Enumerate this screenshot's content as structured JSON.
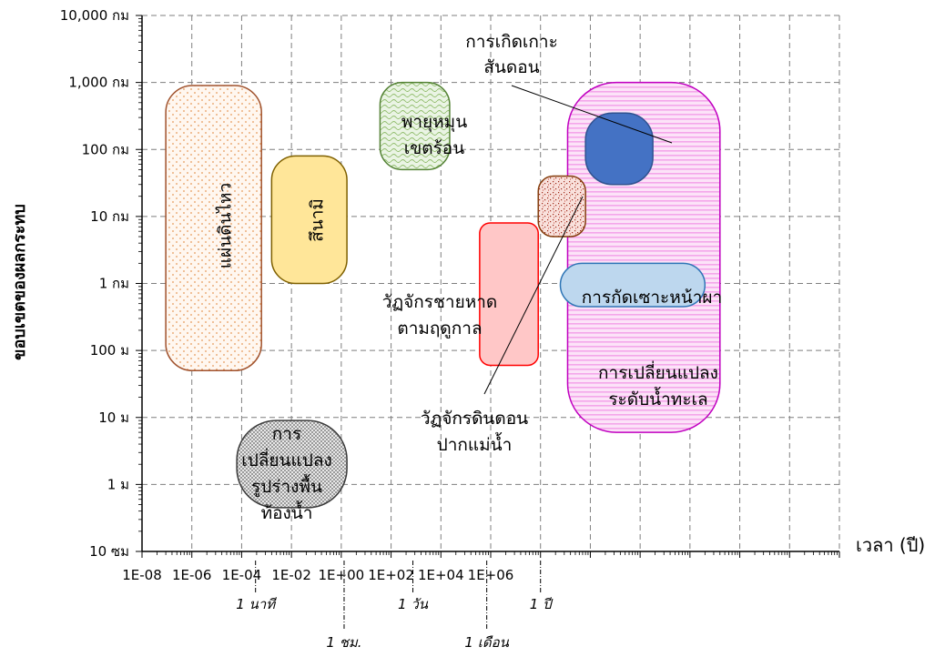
{
  "chart_data": {
    "type": "scatter",
    "title": "",
    "xlabel": "เวลา (ปี)",
    "ylabel": "ขอบเขตของผลกระทบ",
    "x_scale": "log",
    "y_scale": "log",
    "xlim": [
      1e-08,
      1000000.0
    ],
    "ylim_km": [
      0.0001,
      10000
    ],
    "grid": true,
    "x_ticks": [
      "1E-08",
      "1E-06",
      "1E-04",
      "1E-02",
      "1E+00",
      "1E+02",
      "1E+04",
      "1E+06"
    ],
    "y_ticks": [
      "10 ซม",
      "1 ม",
      "10 ม",
      "100 ม",
      "1 กม",
      "10 กม",
      "100 กม",
      "1,000 กม",
      "10,000 กม"
    ],
    "time_markers": [
      {
        "label": "1 นาที",
        "value_years": 1.9e-06
      },
      {
        "label": "1 ชม.",
        "value_years": 0.000114
      },
      {
        "label": "1 วัน",
        "value_years": 0.00274
      },
      {
        "label": "1 เดือน",
        "value_years": 0.0833
      },
      {
        "label": "1 ปี",
        "value_years": 1
      }
    ],
    "phenomena": [
      {
        "name": "แผ่นดินไหว",
        "x_range_years": [
          3e-08,
          2.5e-06
        ],
        "y_range_km": [
          0.05,
          900
        ],
        "fill": "#fdf1e6",
        "stroke": "#a0522d"
      },
      {
        "name": "สึนามิ",
        "x_range_years": [
          4e-06,
          0.00013
        ],
        "y_range_km": [
          1,
          80
        ],
        "fill": "#ffe699",
        "stroke": "#7f6000"
      },
      {
        "name": "พายุหมุนเขตร้อน",
        "x_range_years": [
          0.0006,
          0.015
        ],
        "y_range_km": [
          50,
          1000
        ],
        "fill": "#e2efd9",
        "stroke": "#548235"
      },
      {
        "name": "วัฏจักรชายหาดตามฤดูกาล",
        "x_range_years": [
          0.06,
          0.9
        ],
        "y_range_km": [
          0.06,
          8
        ],
        "fill": "#ffc7c7",
        "stroke": "#ff0000"
      },
      {
        "name": "การเปลี่ยนแปลงรูปร่างพื้นท้องน้ำ",
        "x_range_years": [
          8e-07,
          0.00013
        ],
        "y_range_km": [
          0.00045,
          0.009
        ],
        "fill": "#d4d4d4",
        "stroke": "#3a3a3a"
      },
      {
        "name": "วัฏจักรดินดอนปากแม่น้ำ",
        "x_range_years": [
          0.9,
          8
        ],
        "y_range_km": [
          5,
          40
        ],
        "fill": "#f7d0c6",
        "stroke": "#843c0c"
      },
      {
        "name": "การเกิดเกาะสันดอน",
        "x_range_years": [
          8,
          180
        ],
        "y_range_km": [
          30,
          350
        ],
        "fill": "#4472c4",
        "stroke": "#2f528f"
      },
      {
        "name": "การเปลี่ยนแปลงระดับน้ำทะเล",
        "x_range_years": [
          3.5,
          4000
        ],
        "y_range_km": [
          0.006,
          1000
        ],
        "fill": "#fbd3f6",
        "stroke": "#c000c0"
      },
      {
        "name": "การกัดเซาะหน้าผา",
        "x_range_years": [
          2.5,
          2000
        ],
        "y_range_km": [
          0.45,
          2
        ],
        "fill": "#bdd7ee",
        "stroke": "#2e75b6"
      }
    ]
  },
  "labels": {
    "quake": "แผ่นดินไหว",
    "tsunami": "สึนามิ",
    "cyclone_1": "พายุหมุน",
    "cyclone_2": "เขตร้อน",
    "beach_1": "วัฏจักรชายหาด",
    "beach_2": "ตามฤดูกาล",
    "bed_1": "การ",
    "bed_2": "เปลี่ยนแปลง",
    "bed_3": "รูปร่างพื้น",
    "bed_4": "ท้องน้ำ",
    "delta_1": "วัฏจักรดินดอน",
    "delta_2": "ปากแม่น้ำ",
    "bar_1": "การเกิดเกาะ",
    "bar_2": "สันดอน",
    "sea_1": "การเปลี่ยนแปลง",
    "sea_2": "ระดับน้ำทะเล",
    "cliff": "การกัดเซาะหน้าผา"
  }
}
